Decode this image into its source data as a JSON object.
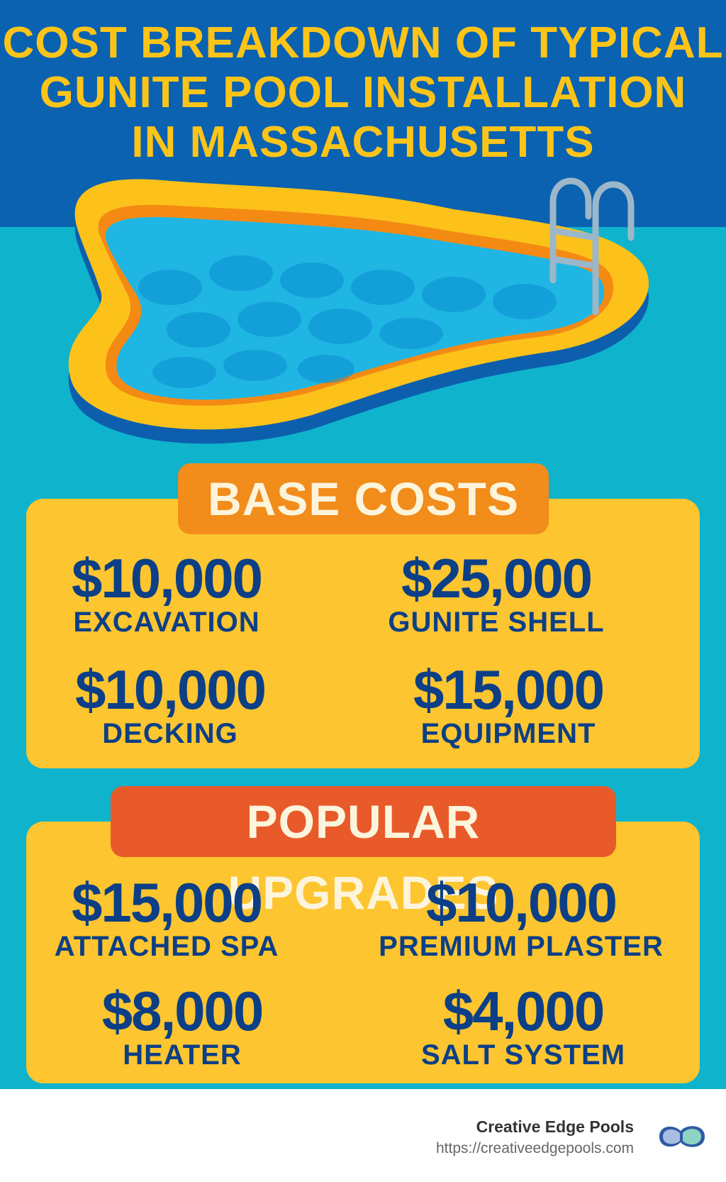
{
  "title": [
    "COST BREAKDOWN OF TYPICAL",
    "GUNITE POOL INSTALLATION",
    "IN MASSACHUSETTS"
  ],
  "colors": {
    "top_bg": "#0a62b0",
    "bg": "#0fb3cc",
    "title": "#fcc419",
    "panel": "#fdc52f",
    "base_badge": "#f28c1a",
    "upgrades_badge": "#e95a2a",
    "amount_text": "#0c3f86"
  },
  "base": {
    "heading": "BASE COSTS",
    "items": [
      {
        "amount": "$10,000",
        "label": "EXCAVATION"
      },
      {
        "amount": "$25,000",
        "label": "GUNITE SHELL"
      },
      {
        "amount": "$10,000",
        "label": "DECKING"
      },
      {
        "amount": "$15,000",
        "label": "EQUIPMENT"
      }
    ]
  },
  "upgrades": {
    "heading": "POPULAR UPGRADES",
    "items": [
      {
        "amount": "$15,000",
        "label": "ATTACHED SPA"
      },
      {
        "amount": "$10,000",
        "label": "PREMIUM PLASTER"
      },
      {
        "amount": "$8,000",
        "label": "HEATER"
      },
      {
        "amount": "$4,000",
        "label": "SALT SYSTEM"
      }
    ]
  },
  "footer": {
    "brand": "Creative Edge Pools",
    "url": "https://creativeedgepools.com",
    "logo_icon": "pool-logo-icon"
  }
}
